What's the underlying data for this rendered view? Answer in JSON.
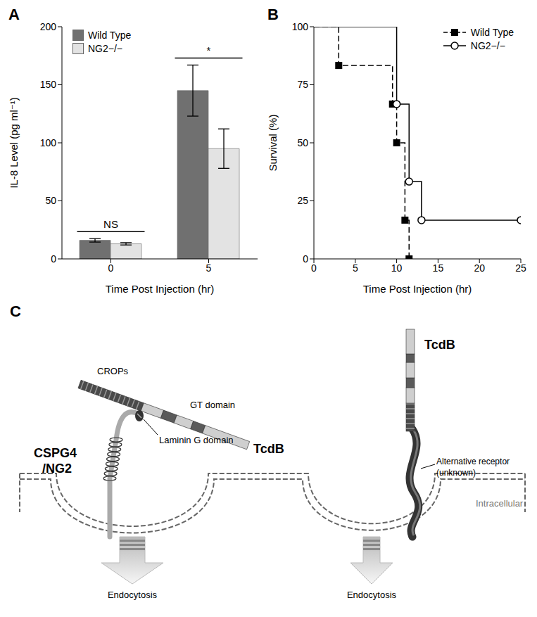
{
  "chart_data": [
    {
      "type": "bar",
      "title": "A",
      "x_label": "Time Post Injection (hr)",
      "y_label": "IL-8 Level (pg ml⁻¹)",
      "categories": [
        "0",
        "5"
      ],
      "series": [
        {
          "name": "Wild Type",
          "color": "#707070",
          "values": [
            16,
            145
          ],
          "errors": [
            1.5,
            22
          ]
        },
        {
          "name": "NG2−/−",
          "color": "#e3e3e3",
          "values": [
            13,
            95
          ],
          "errors": [
            1,
            17
          ]
        }
      ],
      "ylim": [
        0,
        200
      ],
      "yticks": [
        0,
        50,
        100,
        150,
        200
      ],
      "grid": false,
      "legend": "upper left",
      "annotations": [
        {
          "text": "NS",
          "category": "0"
        },
        {
          "text": "*",
          "category": "5"
        }
      ]
    },
    {
      "type": "step",
      "title": "B",
      "x_label": "Time Post Injection (hr)",
      "y_label": "Survival (%)",
      "series": [
        {
          "name": "Wild Type",
          "color": "#000000",
          "line_style": "dashed",
          "marker": "square",
          "x": [
            0,
            3,
            9.5,
            10,
            11,
            11.5
          ],
          "values": [
            100,
            83.3,
            66.7,
            50,
            16.7,
            0
          ]
        },
        {
          "name": "NG2−/−",
          "color": "#000000",
          "line_style": "solid",
          "marker": "open circle",
          "x": [
            0,
            10,
            11.5,
            13,
            25
          ],
          "values": [
            100,
            66.7,
            33.3,
            16.7,
            16.7
          ]
        }
      ],
      "xlim": [
        0,
        25
      ],
      "xticks": [
        0,
        5,
        10,
        15,
        20,
        25
      ],
      "ylim": [
        0,
        100
      ],
      "yticks": [
        0,
        25,
        50,
        75,
        100
      ],
      "grid": false,
      "legend": "upper right"
    }
  ],
  "diagram": {
    "title": "C",
    "left": {
      "toxin": "TcdB",
      "toxin_parts": [
        "CROPs",
        "GT domain"
      ],
      "receptor": [
        "CSPG4",
        "/NG2"
      ],
      "domain": "Laminin G domain",
      "process": "Endocytosis"
    },
    "right": {
      "toxin": "TcdB",
      "receptor": [
        "Alternative receptor",
        "(unknown)"
      ],
      "process": "Endocytosis"
    },
    "compartment": "Intracellular"
  }
}
